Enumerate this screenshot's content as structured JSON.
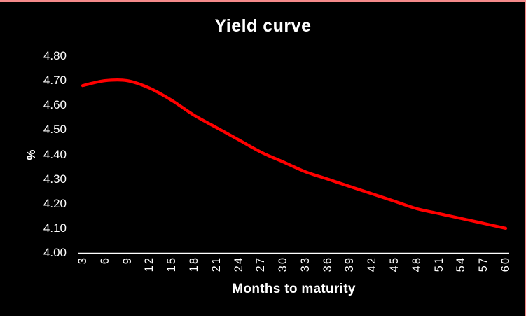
{
  "chart_data": {
    "type": "line",
    "title": "Yield curve",
    "xlabel": "Months to maturity",
    "ylabel": "%",
    "x": [
      3,
      6,
      9,
      12,
      15,
      18,
      21,
      24,
      27,
      30,
      33,
      36,
      39,
      42,
      45,
      48,
      51,
      54,
      57,
      60
    ],
    "values": [
      4.68,
      4.7,
      4.7,
      4.67,
      4.62,
      4.56,
      4.51,
      4.46,
      4.41,
      4.37,
      4.33,
      4.3,
      4.27,
      4.24,
      4.21,
      4.18,
      4.16,
      4.14,
      4.12,
      4.1
    ],
    "xticks": [
      "3",
      "6",
      "9",
      "12",
      "15",
      "18",
      "21",
      "24",
      "27",
      "30",
      "33",
      "36",
      "39",
      "42",
      "45",
      "48",
      "51",
      "54",
      "57",
      "60"
    ],
    "yticks": [
      "4.00",
      "4.10",
      "4.20",
      "4.30",
      "4.40",
      "4.50",
      "4.60",
      "4.70",
      "4.80"
    ],
    "ylim": [
      4.0,
      4.8
    ],
    "grid": false,
    "legend": "none",
    "line_color": "#FF0000",
    "background_color": "#000000",
    "text_color": "#FFFFFF",
    "axis_color": "#FFFFFF",
    "frame_border_color": "#F48A8A"
  }
}
